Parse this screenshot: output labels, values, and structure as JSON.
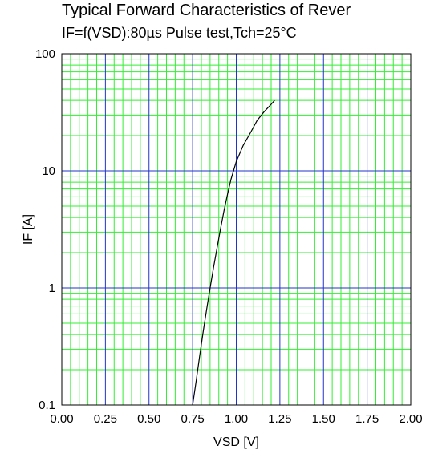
{
  "chart_data": {
    "type": "line",
    "title": "Typical Forward Characteristics of Rever",
    "subtitle": "IF=f(VSD):80µs Pulse test,Tch=25°C",
    "xlabel": "VSD [V]",
    "ylabel": "IF [A]",
    "xlim": [
      0,
      2.0
    ],
    "ylim": [
      0.1,
      100
    ],
    "yscale": "log",
    "xticks": [
      "0.00",
      "0.25",
      "0.50",
      "0.75",
      "1.00",
      "1.25",
      "1.50",
      "1.75",
      "2.00"
    ],
    "yticks": [
      "0.1",
      "1",
      "10",
      "100"
    ],
    "grid": true,
    "series": [
      {
        "x": [
          0.75,
          0.77,
          0.79,
          0.81,
          0.83,
          0.85,
          0.87,
          0.89,
          0.91,
          0.93,
          0.95,
          0.97,
          1.0,
          1.04,
          1.08,
          1.12,
          1.16,
          1.2,
          1.22
        ],
        "y": [
          0.1,
          0.16,
          0.26,
          0.42,
          0.65,
          1.0,
          1.5,
          2.2,
          3.2,
          4.6,
          6.3,
          8.5,
          12,
          16.5,
          21,
          27,
          32,
          37,
          40
        ]
      }
    ]
  },
  "colors": {
    "minor_grid": "#33ee33",
    "major_grid": "#2233cc",
    "curve": "#000000",
    "frame": "#000000"
  }
}
